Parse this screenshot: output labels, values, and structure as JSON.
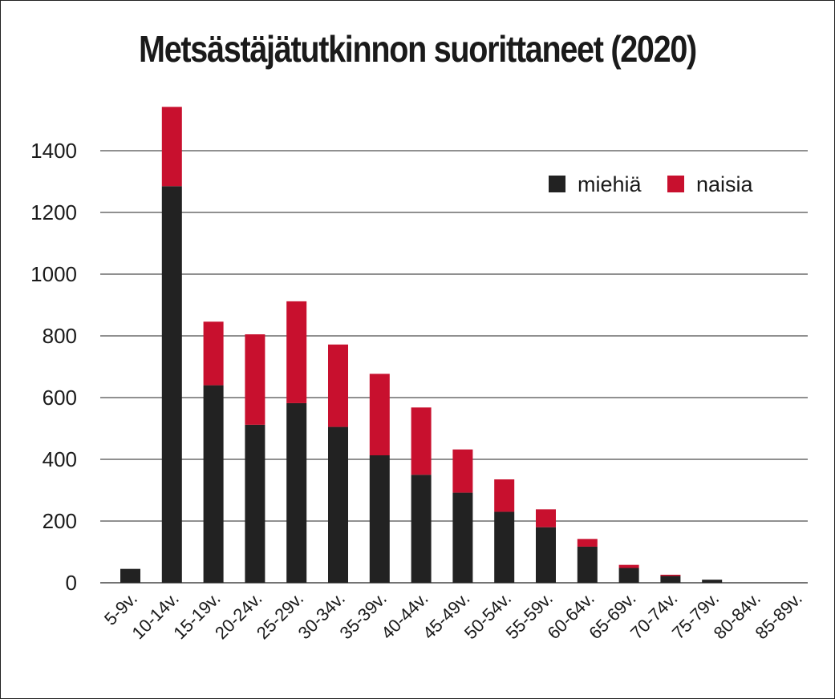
{
  "chart_data": {
    "type": "bar",
    "stacked": true,
    "title": "Metsästäjätutkinnon suorittaneet (2020)",
    "xlabel": "",
    "ylabel": "",
    "ylim": [
      0,
      1500
    ],
    "yticks": [
      0,
      200,
      400,
      600,
      800,
      1000,
      1200,
      1400
    ],
    "grid": true,
    "legend_position": "top-right",
    "categories": [
      "5-9v.",
      "10-14v.",
      "15-19v.",
      "20-24v.",
      "25-29v.",
      "30-34v.",
      "35-39v.",
      "40-44v.",
      "45-49v.",
      "50-54v.",
      "55-59v.",
      "60-64v.",
      "65-69v.",
      "70-74v.",
      "75-79v.",
      "80-84v.",
      "85-89v."
    ],
    "series": [
      {
        "name": "miehiä",
        "color": "#222222",
        "values": [
          45,
          1285,
          640,
          512,
          582,
          505,
          413,
          350,
          292,
          230,
          180,
          117,
          48,
          22,
          10,
          1,
          0
        ]
      },
      {
        "name": "naisia",
        "color": "#c8102e",
        "values": [
          0,
          257,
          206,
          293,
          330,
          267,
          264,
          218,
          140,
          105,
          58,
          25,
          10,
          4,
          0,
          0,
          0
        ]
      }
    ]
  }
}
